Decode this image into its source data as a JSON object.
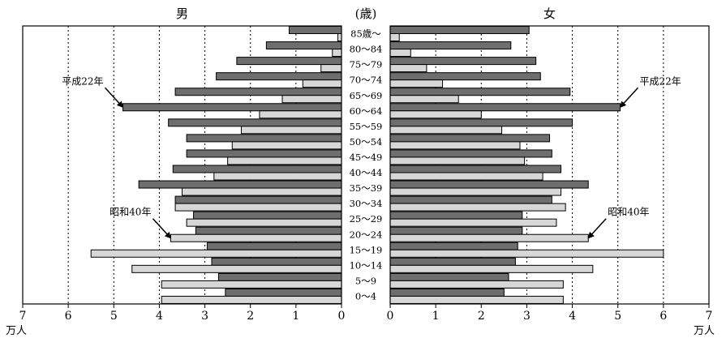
{
  "chart_data": {
    "type": "bar",
    "layout": "population-pyramid",
    "unit_label": "万人",
    "headers": {
      "male": "男",
      "age": "(歳)",
      "female": "女"
    },
    "age_groups": [
      "85歳～",
      "80～84",
      "75～79",
      "70～74",
      "65～69",
      "60～64",
      "55～59",
      "50～54",
      "45～49",
      "40～44",
      "35～39",
      "30～34",
      "25～29",
      "20～24",
      "15～19",
      "10～14",
      "5～9",
      "0～4"
    ],
    "x_ticks": [
      7,
      6,
      5,
      4,
      3,
      2,
      1,
      0
    ],
    "xlim": [
      0,
      7
    ],
    "grid": "dotted-vertical",
    "series": [
      {
        "name": "平成22年",
        "color": "#6e6e6e",
        "male": [
          1.15,
          1.65,
          2.3,
          2.75,
          3.65,
          4.8,
          3.8,
          3.4,
          3.4,
          3.7,
          4.45,
          3.65,
          3.25,
          3.2,
          2.95,
          2.85,
          2.7,
          2.55
        ],
        "female": [
          3.05,
          2.65,
          3.2,
          3.3,
          3.95,
          5.05,
          4.0,
          3.5,
          3.55,
          3.75,
          4.35,
          3.55,
          2.9,
          2.9,
          2.8,
          2.75,
          2.6,
          2.5
        ]
      },
      {
        "name": "昭和40年",
        "color": "#d7d7d7",
        "male": [
          0.08,
          0.2,
          0.45,
          0.85,
          1.3,
          1.8,
          2.2,
          2.4,
          2.5,
          2.8,
          3.5,
          3.65,
          3.4,
          3.75,
          5.5,
          4.6,
          3.95,
          3.95
        ],
        "female": [
          0.2,
          0.45,
          0.8,
          1.15,
          1.5,
          2.0,
          2.45,
          2.85,
          2.95,
          3.35,
          3.75,
          3.85,
          3.65,
          4.35,
          6.0,
          4.45,
          3.8,
          3.8
        ]
      }
    ],
    "annotations": [
      {
        "text": "平成22年",
        "side": "male",
        "series": "平成22年",
        "age_group": "60～64"
      },
      {
        "text": "平成22年",
        "side": "female",
        "series": "平成22年",
        "age_group": "60～64"
      },
      {
        "text": "昭和40年",
        "side": "male",
        "series": "昭和40年",
        "age_group": "20～24"
      },
      {
        "text": "昭和40年",
        "side": "female",
        "series": "昭和40年",
        "age_group": "20～24"
      }
    ]
  }
}
